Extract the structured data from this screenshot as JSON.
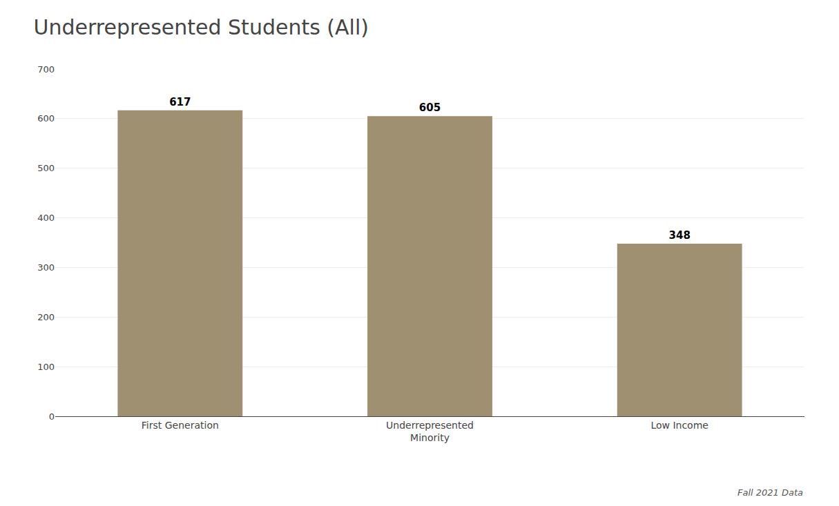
{
  "chart_data": {
    "type": "bar",
    "title": "Underrepresented Students (All)",
    "categories": [
      "First Generation",
      "Underrepresented\nMinority",
      "Low Income"
    ],
    "values": [
      617,
      605,
      348
    ],
    "color": "#9e9070",
    "ylim": [
      0,
      700
    ],
    "yticks": [
      0,
      100,
      200,
      300,
      400,
      500,
      600,
      700
    ],
    "grid": true,
    "data_labels": true,
    "annotations": [
      "Fall 2021 Data"
    ]
  }
}
